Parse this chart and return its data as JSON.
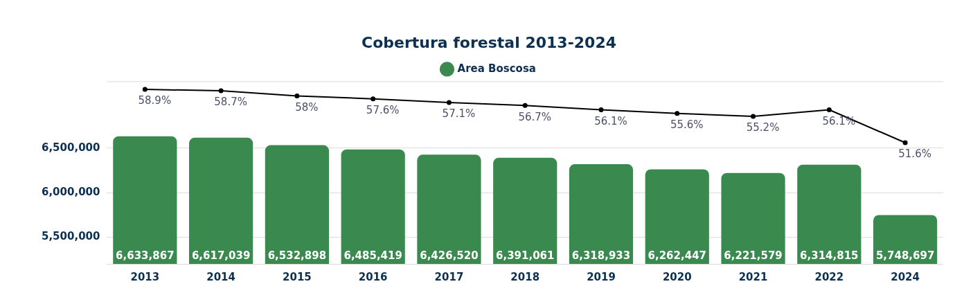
{
  "chart_data": {
    "type": "bar",
    "title": "Cobertura forestal 2013-2024",
    "categories": [
      "2013",
      "2014",
      "2015",
      "2016",
      "2017",
      "2018",
      "2019",
      "2020",
      "2021",
      "2022",
      "2024"
    ],
    "series": [
      {
        "name": "Area Boscosa",
        "color": "#3a8a4f",
        "values": [
          6633867,
          6617039,
          6532898,
          6485419,
          6426520,
          6391061,
          6318933,
          6262447,
          6221579,
          6314815,
          5748697
        ],
        "value_labels": [
          "6,633,867",
          "6,617,039",
          "6,532,898",
          "6,485,419",
          "6,426,520",
          "6,391,061",
          "6,318,933",
          "6,262,447",
          "6,221,579",
          "6,314,815",
          "5,748,697"
        ]
      },
      {
        "type": "line",
        "axis": "y2",
        "color": "#000000",
        "values": [
          58.9,
          58.7,
          58,
          57.6,
          57.1,
          56.7,
          56.1,
          55.6,
          55.2,
          56.1,
          51.6
        ],
        "value_labels": [
          "58.9%",
          "58.7%",
          "58%",
          "57.6%",
          "57.1%",
          "56.7%",
          "56.1%",
          "55.6%",
          "55.2%",
          "56.1%",
          "51.6%"
        ]
      }
    ],
    "ylim": [
      5200000,
      7250000
    ],
    "yticks": [
      {
        "value": 5500000,
        "label": "5,500,000"
      },
      {
        "value": 6000000,
        "label": "6,000,000"
      },
      {
        "value": 6500000,
        "label": "6,500,000"
      }
    ],
    "grid": "y",
    "legend": "top",
    "marker": "circle",
    "tick_labels": [
      "x",
      "y"
    ]
  }
}
